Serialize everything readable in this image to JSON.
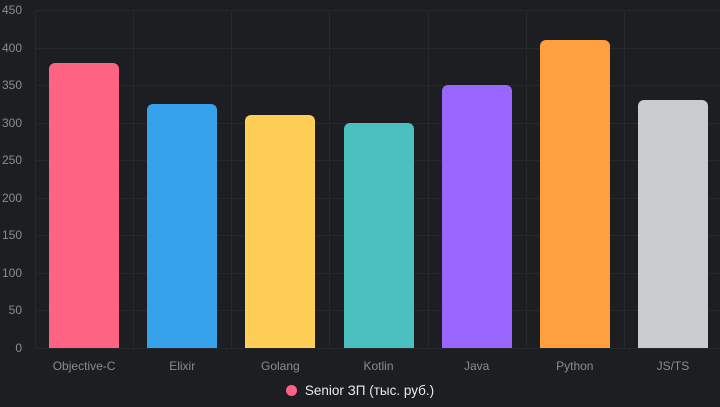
{
  "chart_data": {
    "type": "bar",
    "categories": [
      "Objective-C",
      "Elixir",
      "Golang",
      "Kotlin",
      "Java",
      "Python",
      "JS/TS"
    ],
    "series": [
      {
        "name": "Senior ЗП (тыс. руб.)",
        "values": [
          380,
          325,
          310,
          300,
          350,
          410,
          330
        ],
        "colors": [
          "#FF6384",
          "#36A2EB",
          "#FFCE56",
          "#4BC0C0",
          "#9966FF",
          "#FF9F40",
          "#C9CBCF"
        ]
      }
    ],
    "title": "",
    "xlabel": "",
    "ylabel": "",
    "ylim": [
      0,
      450
    ],
    "y_ticks": [
      0,
      50,
      100,
      150,
      200,
      250,
      300,
      350,
      400,
      450
    ],
    "grid": true,
    "legend_position": "bottom"
  },
  "legend": {
    "label": "Senior ЗП (тыс. руб.)",
    "marker_color": "#FF6384"
  },
  "colors": {
    "background": "#1c1e22",
    "gridline": "#26282d",
    "tick_label": "#8a8c90",
    "legend_text": "#e8e9eb"
  }
}
